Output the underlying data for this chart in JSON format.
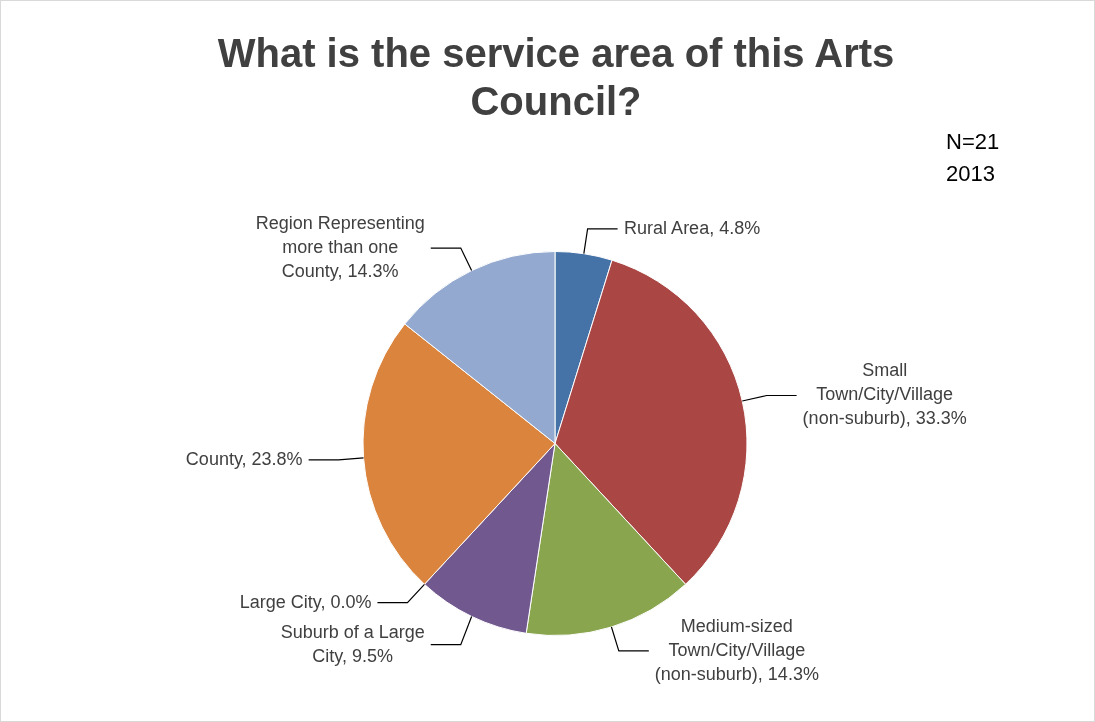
{
  "chart_data": {
    "type": "pie",
    "title": "What is the service area of this Arts Council?",
    "categories": [
      "Rural Area",
      "Small Town/City/Village (non-suburb)",
      "Medium-sized Town/City/Village (non-suburb)",
      "Suburb of a Large City",
      "Large City",
      "County",
      "Region Representing more than one County"
    ],
    "values": [
      4.8,
      33.3,
      14.3,
      9.5,
      0.0,
      23.8,
      14.3
    ],
    "value_labels": [
      "4.8%",
      "33.3%",
      "14.3%",
      "9.5%",
      "0.0%",
      "23.8%",
      "14.3%"
    ],
    "colors": [
      "#4572a7",
      "#aa4643",
      "#89a54e",
      "#71588f",
      "#4198af",
      "#db843d",
      "#93a9cf"
    ],
    "annotations": [
      "N=21",
      "2013"
    ]
  }
}
